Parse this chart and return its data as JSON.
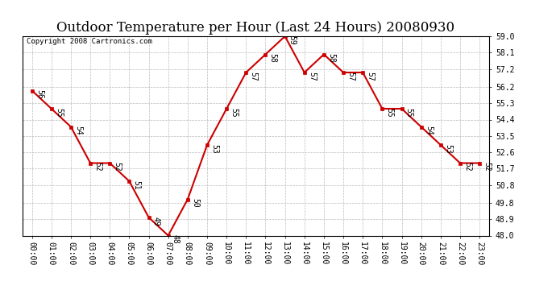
{
  "title": "Outdoor Temperature per Hour (Last 24 Hours) 20080930",
  "copyright": "Copyright 2008 Cartronics.com",
  "hours": [
    "00:00",
    "01:00",
    "02:00",
    "03:00",
    "04:00",
    "05:00",
    "06:00",
    "07:00",
    "08:00",
    "09:00",
    "10:00",
    "11:00",
    "12:00",
    "13:00",
    "14:00",
    "15:00",
    "16:00",
    "17:00",
    "18:00",
    "19:00",
    "20:00",
    "21:00",
    "22:00",
    "23:00"
  ],
  "temps": [
    56,
    55,
    54,
    52,
    52,
    51,
    49,
    48,
    50,
    53,
    55,
    57,
    58,
    59,
    57,
    58,
    57,
    57,
    55,
    55,
    54,
    53,
    52,
    52
  ],
  "temp_labels": [
    "56",
    "55",
    "54",
    "52",
    "52",
    "51",
    "49",
    "48",
    "50",
    "53",
    "55",
    "57",
    "58",
    "59",
    "57",
    "58",
    "57",
    "57",
    "55",
    "55",
    "54",
    "53",
    "52",
    "52"
  ],
  "ylim_min": 48.0,
  "ylim_max": 59.0,
  "yticks": [
    48.0,
    48.9,
    49.8,
    50.8,
    51.7,
    52.6,
    53.5,
    54.4,
    55.3,
    56.2,
    57.2,
    58.1,
    59.0
  ],
  "line_color": "#cc0000",
  "marker_color": "#cc0000",
  "bg_color": "#ffffff",
  "grid_color": "#bbbbbb",
  "title_fontsize": 12,
  "annot_fontsize": 7,
  "tick_fontsize": 7,
  "copyright_fontsize": 6.5
}
